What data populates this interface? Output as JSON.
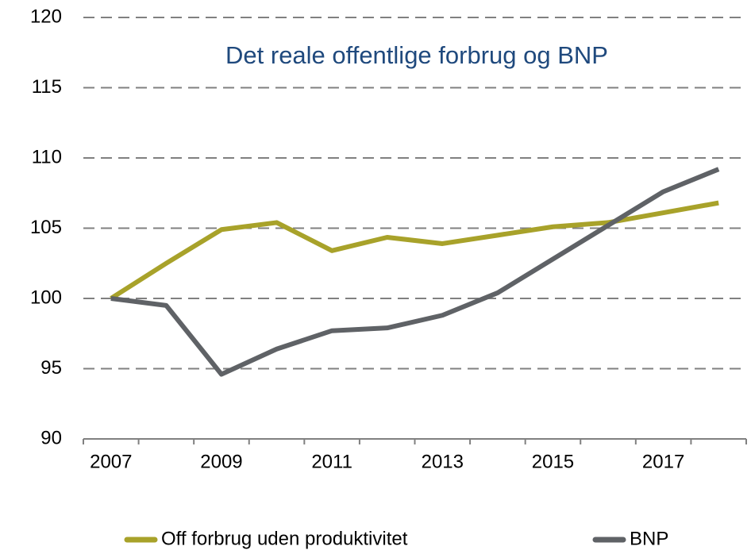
{
  "chart_data": {
    "type": "line",
    "title": "Det reale offentlige forbrug og BNP",
    "categories": [
      "2007",
      null,
      "2009",
      null,
      "2011",
      null,
      "2013",
      null,
      "2015",
      null,
      "2017",
      null
    ],
    "series": [
      {
        "name": "Off forbrug uden produktivitet",
        "color": "#a8a22a",
        "values": [
          100,
          102.5,
          104.9,
          105.4,
          103.4,
          104.35,
          103.9,
          104.5,
          105.1,
          105.4,
          106.1,
          106.8
        ]
      },
      {
        "name": "BNP",
        "color": "#5f6266",
        "values": [
          100,
          99.5,
          94.6,
          96.4,
          97.7,
          97.9,
          98.8,
          100.4,
          102.8,
          105.2,
          107.6,
          109.2
        ]
      }
    ],
    "ylim": [
      90,
      120
    ],
    "yticks": [
      90,
      95,
      100,
      105,
      110,
      115,
      120
    ],
    "grid": true,
    "legend": "bottom"
  }
}
